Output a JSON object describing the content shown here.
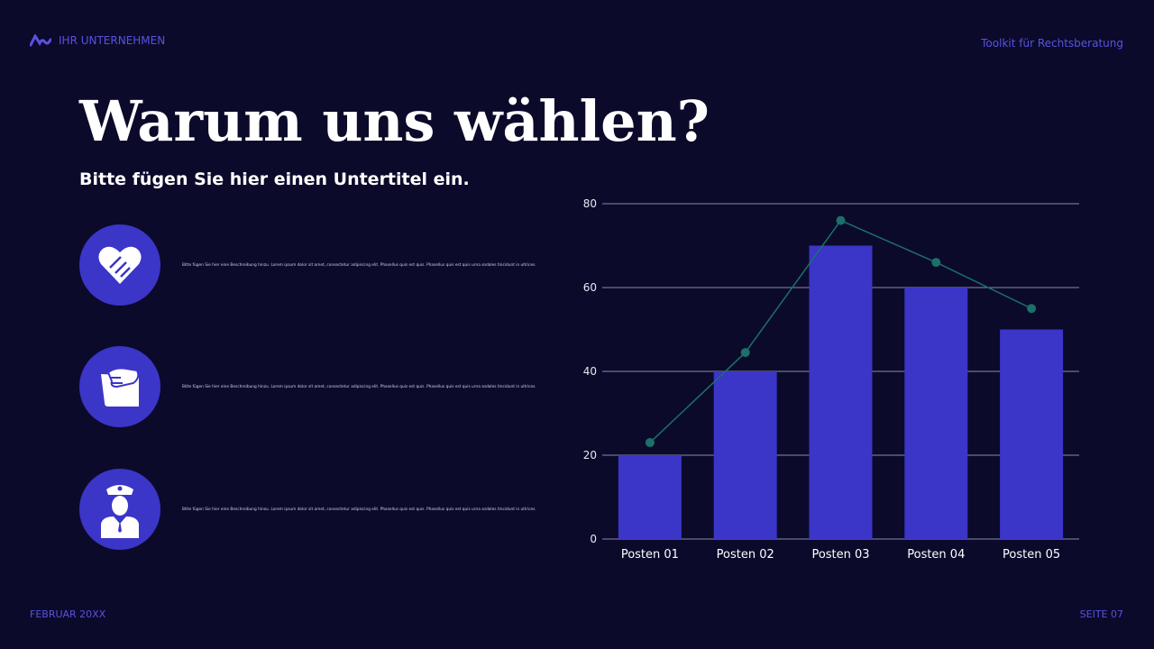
{
  "header": {
    "company": "IHR UNTERNEHMEN",
    "toolkit": "Toolkit für Rechtsberatung"
  },
  "title": "Warum uns wählen?",
  "subtitle": "Bitte fügen Sie hier einen Untertitel ein.",
  "features": [
    {
      "icon": "handshake-heart-icon",
      "text": "Bitte fügen Sie hier eine Beschreibung hinzu. Lorem ipsum dolor sit amet, consectetur adipiscing elit. Phasellus quis est quis. Phasellus quis est quis urna sodales tincidunt in ultrices."
    },
    {
      "icon": "hand-on-folder-icon",
      "text": "Bitte fügen Sie hier eine Beschreibung hinzu. Lorem ipsum dolor sit amet, consectetur adipiscing elit. Phasellus quis est quis. Phasellus quis est quis urna sodales tincidunt in ultrices."
    },
    {
      "icon": "police-officer-icon",
      "text": "Bitte fügen Sie hier eine Beschreibung hinzu. Lorem ipsum dolor sit amet, consectetur adipiscing elit. Phasellus quis est quis. Phasellus quis est quis urna sodales tincidunt in ultrices."
    }
  ],
  "footer": {
    "date": "FEBRUAR 20XX",
    "page": "SEITE 07"
  },
  "colors": {
    "background": "#0b0a2b",
    "accent": "#3b35c8",
    "line": "#1c6f6a",
    "brand_text": "#5a52e0"
  },
  "chart_data": {
    "type": "bar",
    "categories": [
      "Posten 01",
      "Posten 02",
      "Posten 03",
      "Posten 04",
      "Posten 05"
    ],
    "series": [
      {
        "type": "bar",
        "values": [
          20,
          40,
          70,
          60,
          50
        ]
      },
      {
        "type": "line",
        "values": [
          23,
          44.5,
          76,
          66,
          55
        ]
      }
    ],
    "yticks": [
      0,
      20,
      40,
      60,
      80
    ],
    "ylim": [
      0,
      80
    ],
    "grid": true
  }
}
